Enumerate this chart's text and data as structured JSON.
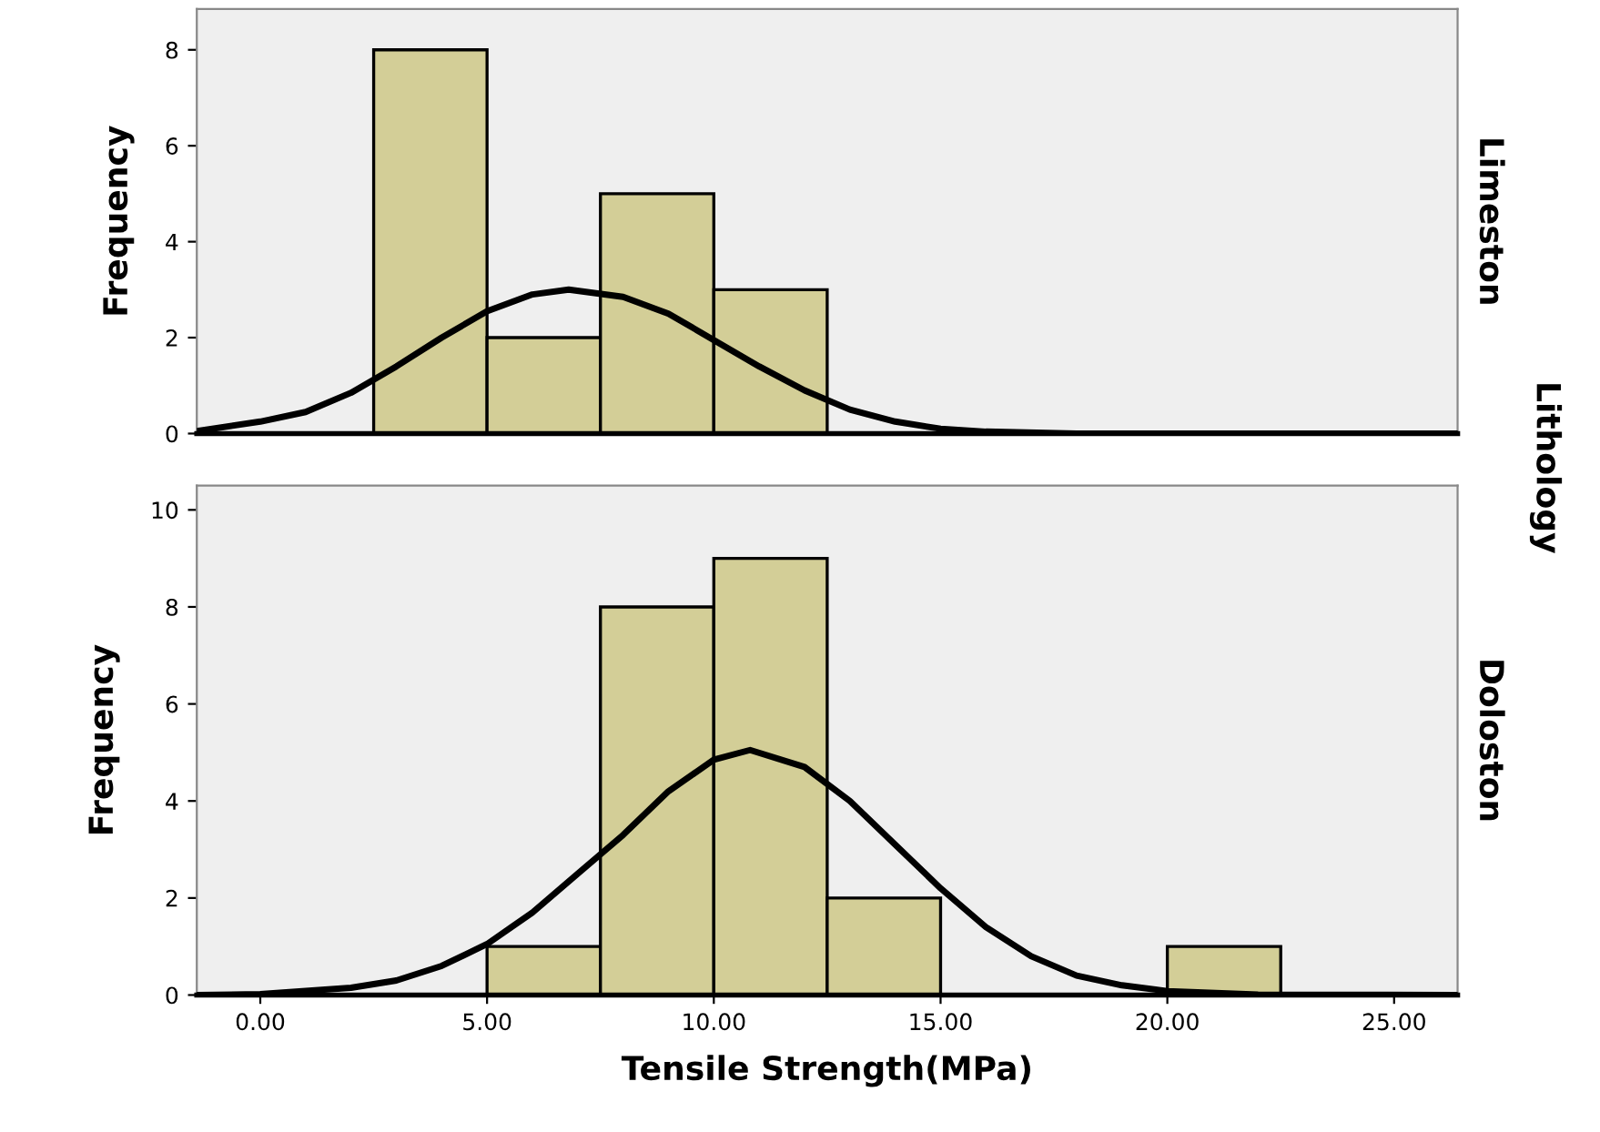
{
  "chart_data": [
    {
      "type": "histogram",
      "ylabel": "Frequency",
      "annotations": [
        "Limeston",
        "Lithology"
      ],
      "bins": [
        2.5,
        5,
        7.5,
        10,
        12.5
      ],
      "values": [
        8,
        2,
        5,
        3
      ],
      "color": "#d3ce97",
      "xlim": [
        -1.4,
        26.4
      ],
      "ylim": [
        0,
        8.85
      ],
      "yticks": [
        0,
        2,
        4,
        6,
        8
      ],
      "tick_labels": "y",
      "grid": false,
      "series": [
        {
          "type": "line",
          "color": "#000000",
          "x": [
            -1.4,
            0,
            1,
            2,
            3,
            4,
            5,
            6,
            6.8,
            8,
            9,
            10,
            11,
            12,
            13,
            14,
            15,
            16,
            18,
            26.4
          ],
          "values": [
            0.05,
            0.25,
            0.45,
            0.85,
            1.4,
            2.0,
            2.55,
            2.9,
            3.0,
            2.85,
            2.5,
            1.95,
            1.4,
            0.9,
            0.5,
            0.25,
            0.1,
            0.04,
            0,
            0
          ]
        }
      ]
    },
    {
      "type": "histogram",
      "ylabel": "Frequency",
      "xlabel": "Tensile Strength(MPa)",
      "annotations": [
        "Doloston"
      ],
      "bins": [
        5,
        7.5,
        10,
        12.5,
        15,
        17.5,
        20,
        22.5
      ],
      "values": [
        1,
        8,
        9,
        2,
        0,
        0,
        1
      ],
      "color": "#d3ce97",
      "xlim": [
        -1.4,
        26.4
      ],
      "xticks": [
        {
          "value": 0,
          "label": "0.00"
        },
        {
          "value": 5,
          "label": "5.00"
        },
        {
          "value": 10,
          "label": "10.00"
        },
        {
          "value": 15,
          "label": "15.00"
        },
        {
          "value": 20,
          "label": "20.00"
        },
        {
          "value": 25,
          "label": "25.00"
        }
      ],
      "ylim": [
        0,
        10.5
      ],
      "yticks": [
        0,
        2,
        4,
        6,
        8,
        10
      ],
      "grid": false,
      "series": [
        {
          "type": "line",
          "color": "#000000",
          "x": [
            -1.4,
            0,
            2,
            3,
            4,
            5,
            6,
            7,
            8,
            9,
            10,
            10.8,
            12,
            13,
            14,
            15,
            16,
            17,
            18,
            19,
            20,
            22,
            26.4
          ],
          "values": [
            0,
            0.02,
            0.15,
            0.3,
            0.6,
            1.05,
            1.7,
            2.5,
            3.3,
            4.2,
            4.85,
            5.05,
            4.7,
            4.0,
            3.1,
            2.2,
            1.4,
            0.8,
            0.4,
            0.2,
            0.08,
            0.01,
            0
          ]
        }
      ]
    }
  ]
}
